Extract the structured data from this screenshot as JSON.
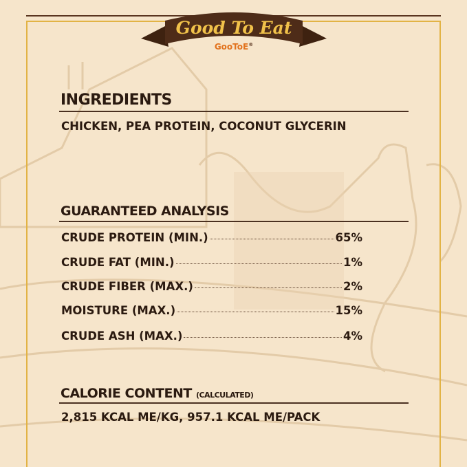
{
  "header": {
    "banner": "Good To Eat",
    "brand": "GooToE",
    "registered": "®"
  },
  "ingredients": {
    "title": "INGREDIENTS",
    "text": "CHICKEN, PEA PROTEIN, COCONUT GLYCERIN"
  },
  "analysis": {
    "title": "GUARANTEED ANALYSIS",
    "rows": [
      {
        "label": "CRUDE PROTEIN (MIN.)",
        "value": "65%"
      },
      {
        "label": "CRUDE FAT (MIN.)",
        "value": "1%"
      },
      {
        "label": "CRUDE FIBER (MAX.)",
        "value": "2%"
      },
      {
        "label": "MOISTURE (MAX.)",
        "value": "15%"
      },
      {
        "label": "CRUDE ASH (MAX.)",
        "value": "4%"
      }
    ]
  },
  "calorie": {
    "title": "CALORIE CONTENT",
    "note": "(CALCULATED)",
    "text": "2,815 KCAL ME/KG, 957.1 KCAL ME/PACK"
  },
  "colors": {
    "background": "#f6e5cb",
    "text": "#2b1a10",
    "gold": "#e2b345",
    "ribbon": "#4e2c18"
  }
}
